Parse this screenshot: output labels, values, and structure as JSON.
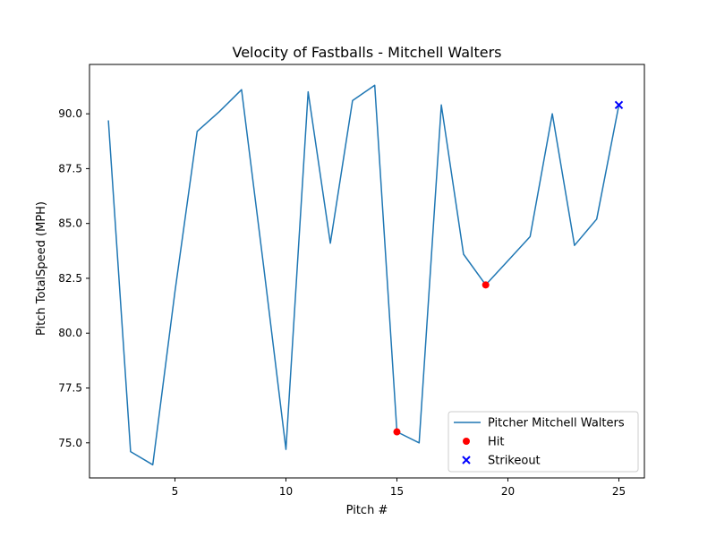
{
  "chart_data": {
    "type": "line",
    "title": "Velocity of Fastballs - Mitchell Walters",
    "xlabel": "Pitch #",
    "ylabel": "Pitch TotalSpeed (MPH)",
    "xlim": [
      1.15,
      26.15
    ],
    "ylim": [
      73.4,
      92.25
    ],
    "xticks": [
      5,
      10,
      15,
      20,
      25
    ],
    "yticks": [
      75.0,
      77.5,
      80.0,
      82.5,
      85.0,
      87.5,
      90.0
    ],
    "xtick_labels": [
      "5",
      "10",
      "15",
      "20",
      "25"
    ],
    "ytick_labels": [
      "75.0",
      "77.5",
      "80.0",
      "82.5",
      "85.0",
      "87.5",
      "90.0"
    ],
    "grid": false,
    "legend_position": "lower right",
    "series": [
      {
        "name": "Pitcher Mitchell Walters",
        "kind": "line",
        "color": "#1f77b4",
        "x": [
          2,
          3,
          4,
          5,
          6,
          7,
          8,
          9,
          10,
          11,
          12,
          13,
          14,
          15,
          16,
          17,
          18,
          19,
          20,
          21,
          22,
          23,
          24,
          25
        ],
        "y": [
          89.7,
          74.6,
          74.0,
          81.9,
          89.2,
          90.1,
          91.1,
          83.0,
          74.7,
          91.0,
          84.1,
          90.6,
          91.3,
          75.5,
          75.0,
          90.4,
          83.6,
          82.2,
          83.3,
          84.4,
          90.0,
          84.0,
          85.2,
          90.4
        ]
      },
      {
        "name": "Hit",
        "kind": "scatter",
        "marker": "circle",
        "color": "#ff0000",
        "x": [
          15,
          19
        ],
        "y": [
          75.5,
          82.2
        ]
      },
      {
        "name": "Strikeout",
        "kind": "scatter",
        "marker": "x",
        "color": "#0000ff",
        "x": [
          25
        ],
        "y": [
          90.4
        ]
      }
    ]
  }
}
